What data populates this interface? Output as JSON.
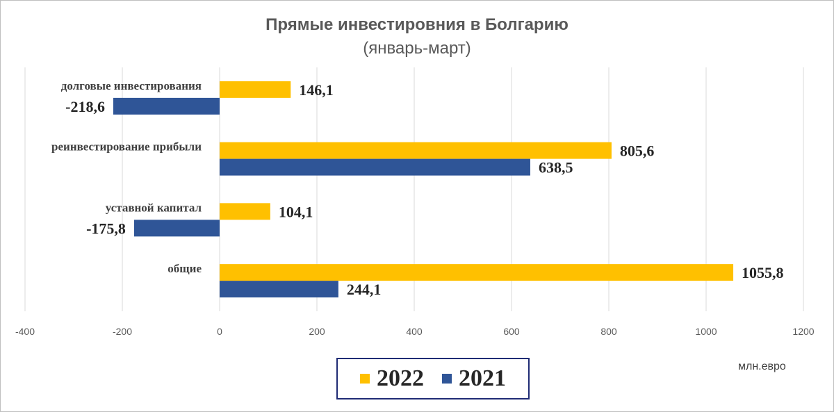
{
  "chart_data": {
    "type": "bar",
    "orientation": "horizontal",
    "title": "Прямые инвестировния в Болгарию",
    "subtitle": "(январь-март)",
    "unit_label": "млн.евро",
    "categories": [
      "долговые инвестирования",
      "реинвестирование прибыли",
      "уставной капитал",
      "общие"
    ],
    "series": [
      {
        "name": "2022",
        "color": "#FFC000",
        "values": [
          146.1,
          805.6,
          104.1,
          1055.8
        ],
        "labels": [
          "146,1",
          "805,6",
          "104,1",
          "1055,8"
        ]
      },
      {
        "name": "2021",
        "color": "#2F5597",
        "values": [
          -218.6,
          638.5,
          -175.8,
          244.1
        ],
        "labels": [
          "-218,6",
          "638,5",
          "-175,8",
          "244,1"
        ]
      }
    ],
    "xlim": [
      -400,
      1200
    ],
    "xticks": [
      -400,
      -200,
      0,
      200,
      400,
      600,
      800,
      1000,
      1200
    ],
    "xtick_labels": [
      "-400",
      "-200",
      "0",
      "200",
      "400",
      "600",
      "800",
      "1000",
      "1200"
    ],
    "grid": "vertical",
    "legend_position": "bottom-center"
  }
}
